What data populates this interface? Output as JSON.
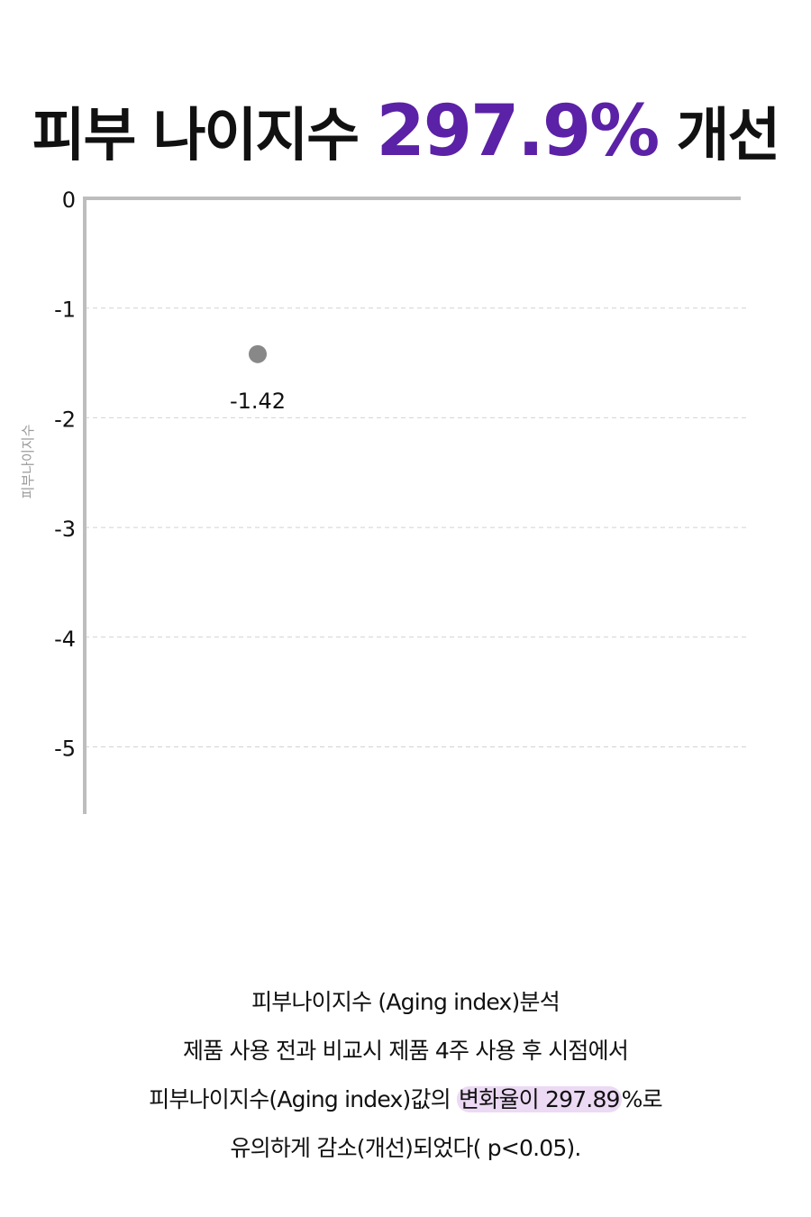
{
  "headline": {
    "prefix": "피부 나이지수",
    "value": "297.9%",
    "suffix": "개선",
    "accent_color": "#5b21a6"
  },
  "chart_data": {
    "type": "scatter",
    "ylabel": "피부나이지수",
    "ylim": [
      -5.6,
      0
    ],
    "yticks": [
      0,
      -1,
      -2,
      -3,
      -4,
      -5
    ],
    "ytick_labels": [
      "0",
      "-1",
      "-2",
      "-3",
      "-4",
      "-5"
    ],
    "grid": true,
    "points": [
      {
        "value": -1.42,
        "label": "-1.42",
        "color": "#888888"
      }
    ]
  },
  "description": {
    "line1": "피부나이지수 (Aging index)분석",
    "line2": "제품 사용 전과 비교시 제품 4주 사용 후 시점에서",
    "line3_pre": "피부나이지수(Aging index)값의",
    "line3_highlight": "변화율이 297.89",
    "line3_post": "%로",
    "line4": "유의하게 감소(개선)되었다( p<0.05).",
    "highlight_color": "#ecd9f3"
  }
}
